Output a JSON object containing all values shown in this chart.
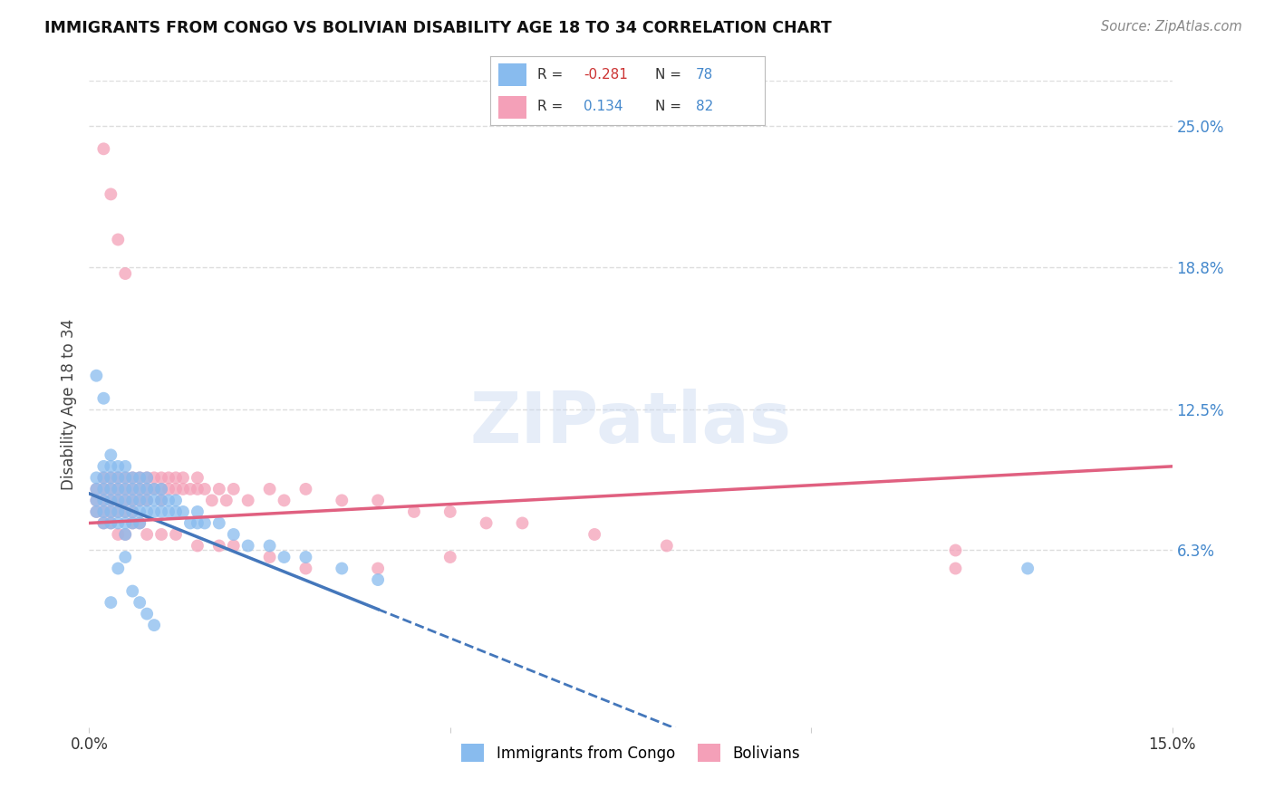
{
  "title": "IMMIGRANTS FROM CONGO VS BOLIVIAN DISABILITY AGE 18 TO 34 CORRELATION CHART",
  "source": "Source: ZipAtlas.com",
  "ylabel": "Disability Age 18 to 34",
  "x_min": 0.0,
  "x_max": 0.15,
  "y_min": -0.015,
  "y_max": 0.27,
  "y_tick_labels_right": [
    "6.3%",
    "12.5%",
    "18.8%",
    "25.0%"
  ],
  "y_tick_positions_right": [
    0.063,
    0.125,
    0.188,
    0.25
  ],
  "background_color": "#ffffff",
  "grid_color": "#dddddd",
  "watermark_text": "ZIPatlas",
  "congo_color": "#88bbee",
  "bolivian_color": "#f4a0b8",
  "trendline_congo_color": "#4477bb",
  "trendline_bolivian_color": "#e06080",
  "congo_points_x": [
    0.001,
    0.001,
    0.001,
    0.001,
    0.002,
    0.002,
    0.002,
    0.002,
    0.002,
    0.002,
    0.003,
    0.003,
    0.003,
    0.003,
    0.003,
    0.003,
    0.003,
    0.004,
    0.004,
    0.004,
    0.004,
    0.004,
    0.004,
    0.005,
    0.005,
    0.005,
    0.005,
    0.005,
    0.005,
    0.005,
    0.006,
    0.006,
    0.006,
    0.006,
    0.006,
    0.007,
    0.007,
    0.007,
    0.007,
    0.007,
    0.008,
    0.008,
    0.008,
    0.008,
    0.009,
    0.009,
    0.009,
    0.01,
    0.01,
    0.01,
    0.011,
    0.011,
    0.012,
    0.012,
    0.013,
    0.014,
    0.015,
    0.015,
    0.016,
    0.018,
    0.02,
    0.022,
    0.025,
    0.027,
    0.03,
    0.035,
    0.04,
    0.001,
    0.002,
    0.003,
    0.004,
    0.005,
    0.006,
    0.007,
    0.008,
    0.009,
    0.13
  ],
  "congo_points_y": [
    0.095,
    0.09,
    0.085,
    0.08,
    0.1,
    0.095,
    0.09,
    0.085,
    0.08,
    0.075,
    0.105,
    0.1,
    0.095,
    0.09,
    0.085,
    0.08,
    0.075,
    0.1,
    0.095,
    0.09,
    0.085,
    0.08,
    0.075,
    0.1,
    0.095,
    0.09,
    0.085,
    0.08,
    0.075,
    0.07,
    0.095,
    0.09,
    0.085,
    0.08,
    0.075,
    0.095,
    0.09,
    0.085,
    0.08,
    0.075,
    0.095,
    0.09,
    0.085,
    0.08,
    0.09,
    0.085,
    0.08,
    0.09,
    0.085,
    0.08,
    0.085,
    0.08,
    0.085,
    0.08,
    0.08,
    0.075,
    0.08,
    0.075,
    0.075,
    0.075,
    0.07,
    0.065,
    0.065,
    0.06,
    0.06,
    0.055,
    0.05,
    0.14,
    0.13,
    0.04,
    0.055,
    0.06,
    0.045,
    0.04,
    0.035,
    0.03,
    0.055
  ],
  "bolivian_points_x": [
    0.001,
    0.001,
    0.001,
    0.002,
    0.002,
    0.002,
    0.002,
    0.003,
    0.003,
    0.003,
    0.003,
    0.004,
    0.004,
    0.004,
    0.004,
    0.005,
    0.005,
    0.005,
    0.005,
    0.006,
    0.006,
    0.006,
    0.006,
    0.007,
    0.007,
    0.007,
    0.008,
    0.008,
    0.008,
    0.009,
    0.009,
    0.01,
    0.01,
    0.01,
    0.011,
    0.011,
    0.012,
    0.012,
    0.013,
    0.013,
    0.014,
    0.015,
    0.015,
    0.016,
    0.017,
    0.018,
    0.019,
    0.02,
    0.022,
    0.025,
    0.027,
    0.03,
    0.035,
    0.04,
    0.045,
    0.05,
    0.055,
    0.06,
    0.07,
    0.08,
    0.002,
    0.003,
    0.004,
    0.005,
    0.006,
    0.007,
    0.008,
    0.01,
    0.012,
    0.015,
    0.018,
    0.02,
    0.025,
    0.03,
    0.04,
    0.05,
    0.12,
    0.12,
    0.002,
    0.003,
    0.004,
    0.005
  ],
  "bolivian_points_y": [
    0.09,
    0.085,
    0.08,
    0.095,
    0.09,
    0.085,
    0.08,
    0.095,
    0.09,
    0.085,
    0.08,
    0.095,
    0.09,
    0.085,
    0.08,
    0.095,
    0.09,
    0.085,
    0.08,
    0.095,
    0.09,
    0.085,
    0.08,
    0.095,
    0.09,
    0.085,
    0.095,
    0.09,
    0.085,
    0.095,
    0.09,
    0.095,
    0.09,
    0.085,
    0.095,
    0.09,
    0.095,
    0.09,
    0.095,
    0.09,
    0.09,
    0.095,
    0.09,
    0.09,
    0.085,
    0.09,
    0.085,
    0.09,
    0.085,
    0.09,
    0.085,
    0.09,
    0.085,
    0.085,
    0.08,
    0.08,
    0.075,
    0.075,
    0.07,
    0.065,
    0.075,
    0.075,
    0.07,
    0.07,
    0.075,
    0.075,
    0.07,
    0.07,
    0.07,
    0.065,
    0.065,
    0.065,
    0.06,
    0.055,
    0.055,
    0.06,
    0.063,
    0.055,
    0.24,
    0.22,
    0.2,
    0.185
  ]
}
